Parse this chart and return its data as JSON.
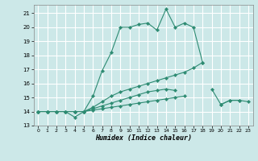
{
  "xlabel": "Humidex (Indice chaleur)",
  "bg_color": "#cce8e8",
  "grid_color": "#ffffff",
  "line_color": "#2d8b72",
  "xlim": [
    -0.5,
    23.5
  ],
  "ylim": [
    13,
    21.6
  ],
  "yticks": [
    13,
    14,
    15,
    16,
    17,
    18,
    19,
    20,
    21
  ],
  "xticks": [
    0,
    1,
    2,
    3,
    4,
    5,
    6,
    7,
    8,
    9,
    10,
    11,
    12,
    13,
    14,
    15,
    16,
    17,
    18,
    19,
    20,
    21,
    22,
    23
  ],
  "series": [
    {
      "segments": [
        {
          "x": [
            0,
            1,
            2,
            3,
            4,
            5,
            6,
            7,
            8,
            9,
            10,
            11,
            12,
            13,
            14,
            15,
            16,
            17,
            18
          ],
          "y": [
            14,
            14,
            14,
            14,
            13.6,
            14,
            15.1,
            16.9,
            18.2,
            20.0,
            20.0,
            20.2,
            20.3,
            19.8,
            21.3,
            20.0,
            20.3,
            20.0,
            17.5
          ]
        }
      ]
    },
    {
      "segments": [
        {
          "x": [
            0,
            1,
            2,
            3,
            4,
            5,
            6,
            7,
            8,
            9,
            10,
            11,
            12,
            13,
            14,
            15,
            16,
            17,
            18
          ],
          "y": [
            14,
            14,
            14,
            14,
            14,
            14,
            14.3,
            14.7,
            15.1,
            15.4,
            15.6,
            15.8,
            16.0,
            16.2,
            16.4,
            16.6,
            16.8,
            17.1,
            17.5
          ]
        }
      ]
    },
    {
      "segments": [
        {
          "x": [
            0,
            1,
            2,
            3,
            4,
            5,
            6,
            7,
            8,
            9,
            10,
            11,
            12,
            13,
            14,
            15
          ],
          "y": [
            14,
            14,
            14,
            14,
            14,
            14,
            14.2,
            14.4,
            14.6,
            14.8,
            15.0,
            15.2,
            15.4,
            15.5,
            15.6,
            15.5
          ]
        },
        {
          "x": [
            19,
            20,
            21,
            22
          ],
          "y": [
            15.6,
            14.5,
            14.8,
            14.8
          ]
        }
      ]
    },
    {
      "segments": [
        {
          "x": [
            0,
            1,
            2,
            3,
            4,
            5,
            6,
            7,
            8,
            9,
            10,
            11,
            12,
            13,
            14,
            15,
            16
          ],
          "y": [
            14,
            14,
            14,
            14,
            14,
            14,
            14.1,
            14.2,
            14.3,
            14.4,
            14.5,
            14.6,
            14.7,
            14.8,
            14.9,
            15.0,
            15.1
          ]
        },
        {
          "x": [
            20,
            21,
            22,
            23
          ],
          "y": [
            14.5,
            14.8,
            14.8,
            14.7
          ]
        }
      ]
    }
  ]
}
